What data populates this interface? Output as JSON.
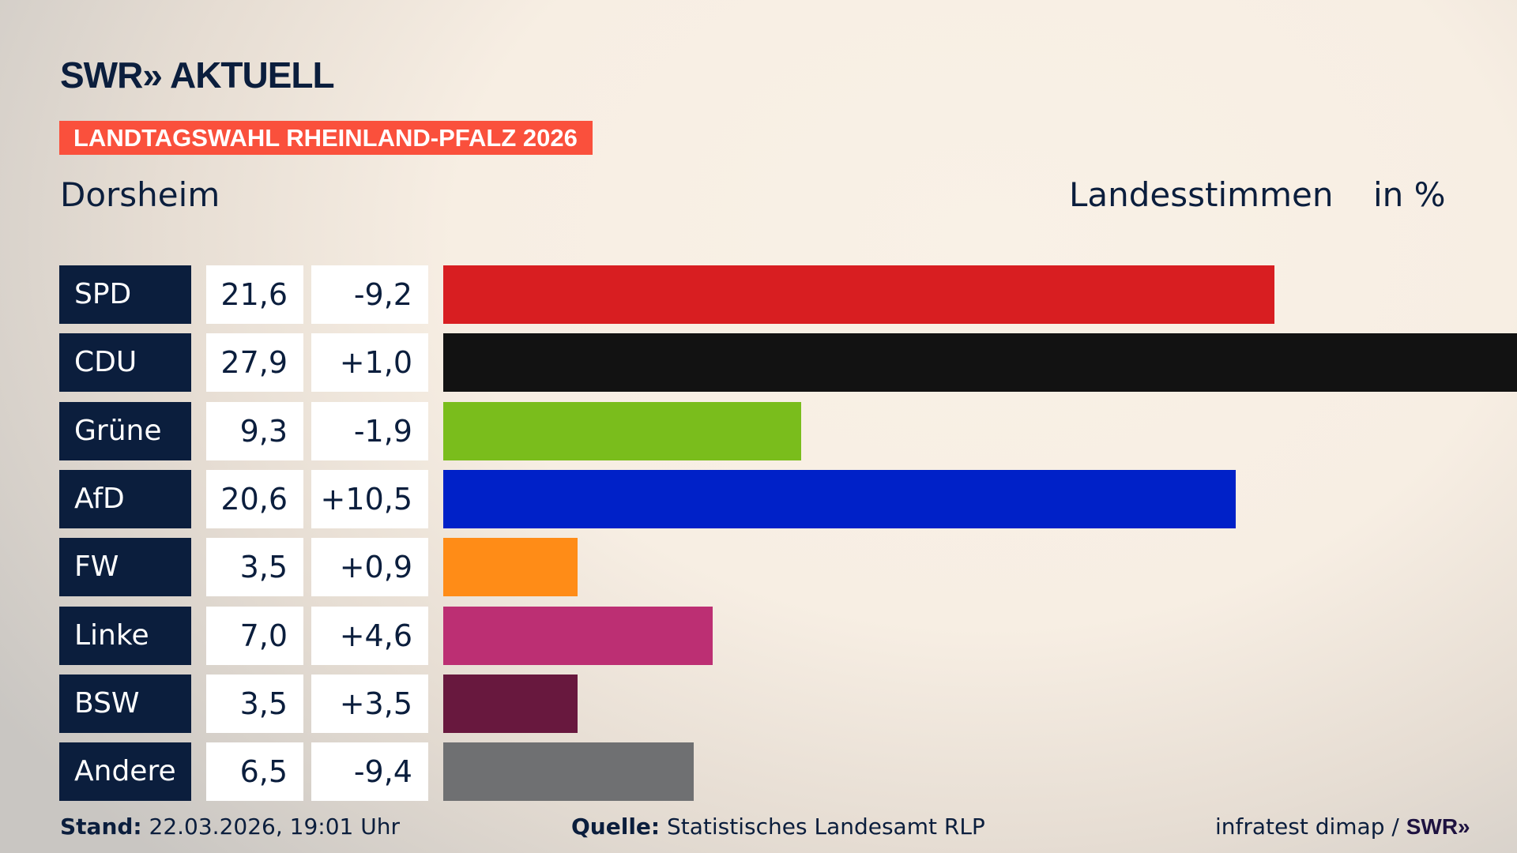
{
  "header": {
    "logo": "SWR» AKTUELL",
    "banner": "LANDTAGSWAHL RHEINLAND-PFALZ 2026",
    "place": "Dorsheim",
    "measure": "Landesstimmen",
    "unit": "in %"
  },
  "chart_data": {
    "type": "bar",
    "orientation": "horizontal",
    "categories": [
      "SPD",
      "CDU",
      "Grüne",
      "AfD",
      "FW",
      "Linke",
      "BSW",
      "Andere"
    ],
    "values": [
      21.6,
      27.9,
      9.3,
      20.6,
      3.5,
      7.0,
      3.5,
      6.5
    ],
    "value_labels": [
      "21,6",
      "27,9",
      "9,3",
      "20,6",
      "3,5",
      "7,0",
      "3,5",
      "6,5"
    ],
    "diff_labels": [
      "-9,2",
      "+1,0",
      "-1,9",
      "+10,5",
      "+0,9",
      "+4,6",
      "+3,5",
      "-9,4"
    ],
    "diffs": [
      -9.2,
      1.0,
      -1.9,
      10.5,
      0.9,
      4.6,
      3.5,
      -9.4
    ],
    "colors": [
      "#d81e21",
      "#121212",
      "#7abd1c",
      "#0021c8",
      "#ff8c17",
      "#bc2f73",
      "#68183e",
      "#6f7072"
    ],
    "xlim": [
      0,
      27.9
    ],
    "grid": false
  },
  "footer": {
    "stand_label": "Stand:",
    "stand_value": " 22.03.2026, 19:01 Uhr",
    "source_label": "Quelle:",
    "source_value": " Statistisches Landesamt RLP",
    "credit": "infratest dimap / ",
    "credit_logo": "SWR»"
  }
}
